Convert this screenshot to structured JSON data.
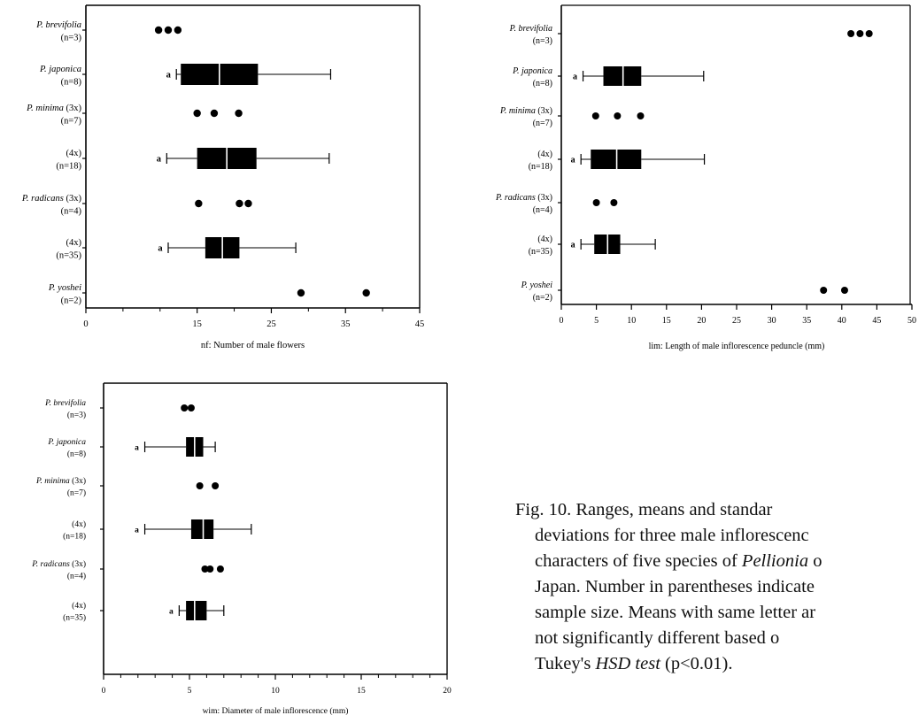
{
  "chart_data": [
    {
      "type": "box",
      "xlabel": "nf: Number of male flowers",
      "xlim": [
        0,
        45
      ],
      "xticks": [
        0,
        15,
        25,
        35,
        45
      ],
      "xminor": [
        5,
        10,
        20,
        30,
        40
      ],
      "groups": [
        {
          "name": "P. brevifolia",
          "n": "(n=3)",
          "kind": "points",
          "points": [
            9.8,
            11.1,
            12.4
          ]
        },
        {
          "name": "P. japonica",
          "n": "(n=8)",
          "kind": "box",
          "letter": "a",
          "min": 12.2,
          "q1": 12.8,
          "median": 18,
          "q3": 23.2,
          "max": 33
        },
        {
          "name": "P. minima (3x)",
          "n": "(n=7)",
          "kind": "points",
          "points": [
            15,
            17.3,
            20.6
          ]
        },
        {
          "name": "(4x)",
          "n": "(n=18)",
          "kind": "box",
          "letter": "a",
          "min": 10.9,
          "q1": 15,
          "median": 19,
          "q3": 23,
          "max": 32.8
        },
        {
          "name": "P. radicans (3x)",
          "n": "(n=4)",
          "kind": "points",
          "points": [
            15.2,
            20.7,
            21.9
          ]
        },
        {
          "name": "(4x)",
          "n": "(n=35)",
          "kind": "box",
          "letter": "a",
          "min": 11.1,
          "q1": 16.1,
          "median": 18.4,
          "q3": 20.7,
          "max": 28.3
        },
        {
          "name": "P. yoshei",
          "n": "(n=2)",
          "kind": "points",
          "points": [
            29,
            37.8
          ]
        }
      ]
    },
    {
      "type": "box",
      "xlabel": "lim: Length of male inflorescence peduncle (mm)",
      "xlim": [
        0,
        50
      ],
      "xticks": [
        0,
        5,
        10,
        15,
        20,
        25,
        30,
        35,
        40,
        45,
        50
      ],
      "xminor": [],
      "groups": [
        {
          "name": "P. brevifolia",
          "n": "(n=3)",
          "kind": "points",
          "points": [
            41.3,
            42.6,
            43.9
          ]
        },
        {
          "name": "P. japonica",
          "n": "(n=8)",
          "kind": "box",
          "letter": "a",
          "min": 3.1,
          "q1": 6,
          "median": 8.8,
          "q3": 11.4,
          "max": 20.3
        },
        {
          "name": "P. minima (3x)",
          "n": "(n=7)",
          "kind": "points",
          "points": [
            4.9,
            8,
            11.3
          ]
        },
        {
          "name": "(4x)",
          "n": "(n=18)",
          "kind": "box",
          "letter": "a",
          "min": 2.8,
          "q1": 4.2,
          "median": 7.9,
          "q3": 11.4,
          "max": 20.4
        },
        {
          "name": "P. radicans (3x)",
          "n": "(n=4)",
          "kind": "points",
          "points": [
            5,
            7.5
          ]
        },
        {
          "name": "(4x)",
          "n": "(n=35)",
          "kind": "box",
          "letter": "a",
          "min": 2.8,
          "q1": 4.7,
          "median": 6.6,
          "q3": 8.4,
          "max": 13.4
        },
        {
          "name": "P. yoshei",
          "n": "(n=2)",
          "kind": "points",
          "points": [
            37.4,
            40.4
          ]
        }
      ]
    },
    {
      "type": "box",
      "xlabel": "wim: Diameter of male inflorescence (mm)",
      "xlim": [
        0,
        20
      ],
      "xticks": [
        0,
        5,
        10,
        15,
        20
      ],
      "xminor": [
        1,
        2,
        3,
        4,
        6,
        7,
        8,
        9,
        11,
        12,
        13,
        14,
        16,
        17,
        18,
        19
      ],
      "groups": [
        {
          "name": "P. brevifolia",
          "n": "(n=3)",
          "kind": "points",
          "points": [
            4.7,
            5.1
          ]
        },
        {
          "name": "P. japonica",
          "n": "(n=8)",
          "kind": "box",
          "letter": "a",
          "min": 2.4,
          "q1": 4.8,
          "median": 5.3,
          "q3": 5.8,
          "max": 6.5
        },
        {
          "name": "P. minima (3x)",
          "n": "(n=7)",
          "kind": "points",
          "points": [
            5.6,
            6.5
          ]
        },
        {
          "name": "(4x)",
          "n": "(n=18)",
          "kind": "box",
          "letter": "a",
          "min": 2.4,
          "q1": 5.1,
          "median": 5.8,
          "q3": 6.4,
          "max": 8.6
        },
        {
          "name": "P. radicans (3x)",
          "n": "(n=4)",
          "kind": "points",
          "points": [
            5.9,
            6.2,
            6.8
          ]
        },
        {
          "name": "(4x)",
          "n": "(n=35)",
          "kind": "box",
          "letter": "a",
          "min": 4.4,
          "q1": 4.8,
          "median": 5.3,
          "q3": 6,
          "max": 7
        }
      ]
    }
  ],
  "caption": {
    "line1": "Fig. 10. Ranges, means and standar",
    "line2": "deviations for three male inflorescenc",
    "line3a": "characters of five species of ",
    "line3b": "Pellionia",
    "line3c": " o",
    "line4": "Japan. Number in parentheses indicate",
    "line5": "sample size. Means with same letter ar",
    "line6": "not significantly different based o",
    "line7a": "Tukey's ",
    "line7b": "HSD test",
    "line7c": " (p<0.01)."
  }
}
